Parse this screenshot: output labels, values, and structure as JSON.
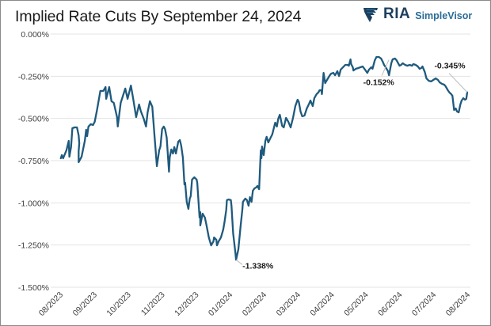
{
  "title": "Implied Rate Cuts By September 24, 2024",
  "logo": {
    "brand": "RIA",
    "product": "SimpleVisor",
    "icon": "eagle-shield-icon",
    "brand_color": "#1d3f5e",
    "product_color": "#2a6c96"
  },
  "chart_data": {
    "type": "line",
    "title": "Implied Rate Cuts By September 24, 2024",
    "xlabel": "",
    "ylabel": "",
    "ylim": [
      -1.5,
      0.0
    ],
    "yticks": [
      0.0,
      -0.25,
      -0.5,
      -0.75,
      -1.0,
      -1.25,
      -1.5
    ],
    "ytick_labels": [
      "0.000%",
      "-0.250%",
      "-0.500%",
      "-0.750%",
      "-1.000%",
      "-1.250%",
      "-1.500%"
    ],
    "xtick_labels": [
      "08/2023",
      "09/2023",
      "10/2023",
      "11/2023",
      "12/2023",
      "01/2024",
      "02/2024",
      "03/2024",
      "04/2024",
      "05/2024",
      "06/2024",
      "07/2024",
      "08/2024"
    ],
    "x_unit": "months since 08/2023",
    "xlim": [
      0,
      12
    ],
    "grid": true,
    "line_color": "#1f5a7d",
    "series": [
      {
        "name": "Implied rate cuts",
        "points": [
          [
            0.02,
            -0.736
          ],
          [
            0.05,
            -0.717
          ],
          [
            0.09,
            -0.736
          ],
          [
            0.19,
            -0.689
          ],
          [
            0.26,
            -0.633
          ],
          [
            0.28,
            -0.727
          ],
          [
            0.33,
            -0.67
          ],
          [
            0.37,
            -0.558
          ],
          [
            0.44,
            -0.553
          ],
          [
            0.51,
            -0.553
          ],
          [
            0.56,
            -0.6
          ],
          [
            0.58,
            -0.647
          ],
          [
            0.56,
            -0.694
          ],
          [
            0.56,
            -0.759
          ],
          [
            0.65,
            -0.727
          ],
          [
            0.75,
            -0.633
          ],
          [
            0.79,
            -0.567
          ],
          [
            0.82,
            -0.605
          ],
          [
            0.86,
            -0.548
          ],
          [
            0.93,
            -0.534
          ],
          [
            1.0,
            -0.539
          ],
          [
            1.05,
            -0.52
          ],
          [
            1.12,
            -0.45
          ],
          [
            1.22,
            -0.337
          ],
          [
            1.31,
            -0.337
          ],
          [
            1.38,
            -0.314
          ],
          [
            1.4,
            -0.384
          ],
          [
            1.49,
            -0.314
          ],
          [
            1.56,
            -0.398
          ],
          [
            1.63,
            -0.408
          ],
          [
            1.73,
            -0.492
          ],
          [
            1.75,
            -0.548
          ],
          [
            1.84,
            -0.408
          ],
          [
            1.98,
            -0.323
          ],
          [
            2.05,
            -0.384
          ],
          [
            2.15,
            -0.305
          ],
          [
            2.22,
            -0.384
          ],
          [
            2.31,
            -0.492
          ],
          [
            2.4,
            -0.417
          ],
          [
            2.45,
            -0.455
          ],
          [
            2.54,
            -0.502
          ],
          [
            2.61,
            -0.548
          ],
          [
            2.66,
            -0.464
          ],
          [
            2.73,
            -0.398
          ],
          [
            2.8,
            -0.431
          ],
          [
            2.87,
            -0.609
          ],
          [
            2.94,
            -0.783
          ],
          [
            3.01,
            -0.689
          ],
          [
            3.05,
            -0.666
          ],
          [
            3.1,
            -0.563
          ],
          [
            3.15,
            -0.548
          ],
          [
            3.19,
            -0.563
          ],
          [
            3.24,
            -0.614
          ],
          [
            3.31,
            -0.816
          ],
          [
            3.33,
            -0.731
          ],
          [
            3.38,
            -0.684
          ],
          [
            3.43,
            -0.708
          ],
          [
            3.47,
            -0.67
          ],
          [
            3.52,
            -0.708
          ],
          [
            3.59,
            -0.638
          ],
          [
            3.64,
            -0.628
          ],
          [
            3.68,
            -0.661
          ],
          [
            3.73,
            -0.731
          ],
          [
            3.78,
            -0.891
          ],
          [
            3.8,
            -0.881
          ],
          [
            3.85,
            -0.994
          ],
          [
            3.9,
            -1.036
          ],
          [
            3.94,
            -0.975
          ],
          [
            3.97,
            -0.961
          ],
          [
            4.01,
            -0.862
          ],
          [
            4.08,
            -0.849
          ],
          [
            4.15,
            -0.862
          ],
          [
            4.17,
            -0.882
          ],
          [
            4.24,
            -1.087
          ],
          [
            4.26,
            -1.055
          ],
          [
            4.26,
            -1.134
          ],
          [
            4.33,
            -1.064
          ],
          [
            4.4,
            -1.087
          ],
          [
            4.45,
            -1.134
          ],
          [
            4.52,
            -1.205
          ],
          [
            4.59,
            -1.252
          ],
          [
            4.66,
            -1.228
          ],
          [
            4.68,
            -1.205
          ],
          [
            4.75,
            -1.219
          ],
          [
            4.77,
            -1.252
          ],
          [
            4.82,
            -1.228
          ],
          [
            4.89,
            -1.205
          ],
          [
            4.96,
            -1.158
          ],
          [
            5.0,
            -1.111
          ],
          [
            5.05,
            -1.041
          ],
          [
            5.07,
            -0.984
          ],
          [
            5.12,
            -0.98
          ],
          [
            5.19,
            -0.984
          ],
          [
            5.21,
            -1.017
          ],
          [
            5.26,
            -1.181
          ],
          [
            5.33,
            -1.298
          ],
          [
            5.35,
            -1.338
          ],
          [
            5.42,
            -1.275
          ],
          [
            5.49,
            -1.134
          ],
          [
            5.54,
            -1.041
          ],
          [
            5.56,
            -0.994
          ],
          [
            5.63,
            -0.975
          ],
          [
            5.68,
            -0.984
          ],
          [
            5.73,
            -1.017
          ],
          [
            5.77,
            -0.966
          ],
          [
            5.82,
            -0.994
          ],
          [
            5.86,
            -0.928
          ],
          [
            5.91,
            -0.914
          ],
          [
            5.96,
            -0.909
          ],
          [
            6.0,
            -0.9
          ],
          [
            6.05,
            -0.919
          ],
          [
            6.1,
            -0.689
          ],
          [
            6.12,
            -0.736
          ],
          [
            6.14,
            -0.666
          ],
          [
            6.19,
            -0.717
          ],
          [
            6.24,
            -0.633
          ],
          [
            6.28,
            -0.609
          ],
          [
            6.33,
            -0.642
          ],
          [
            6.4,
            -0.614
          ],
          [
            6.45,
            -0.595
          ],
          [
            6.54,
            -0.525
          ],
          [
            6.59,
            -0.548
          ],
          [
            6.63,
            -0.503
          ],
          [
            6.68,
            -0.478
          ],
          [
            6.7,
            -0.497
          ],
          [
            6.75,
            -0.544
          ],
          [
            6.8,
            -0.553
          ],
          [
            6.87,
            -0.497
          ],
          [
            6.94,
            -0.52
          ],
          [
            7.01,
            -0.553
          ],
          [
            7.08,
            -0.497
          ],
          [
            7.15,
            -0.427
          ],
          [
            7.22,
            -0.389
          ],
          [
            7.26,
            -0.403
          ],
          [
            7.31,
            -0.459
          ],
          [
            7.36,
            -0.487
          ],
          [
            7.43,
            -0.483
          ],
          [
            7.5,
            -0.441
          ],
          [
            7.57,
            -0.413
          ],
          [
            7.61,
            -0.394
          ],
          [
            7.68,
            -0.427
          ],
          [
            7.73,
            -0.38
          ],
          [
            7.8,
            -0.356
          ],
          [
            7.85,
            -0.347
          ],
          [
            7.89,
            -0.333
          ],
          [
            7.94,
            -0.333
          ],
          [
            7.96,
            -0.356
          ],
          [
            8.01,
            -0.23
          ],
          [
            8.06,
            -0.291
          ],
          [
            8.13,
            -0.267
          ],
          [
            8.2,
            -0.244
          ],
          [
            8.24,
            -0.235
          ],
          [
            8.31,
            -0.23
          ],
          [
            8.36,
            -0.244
          ],
          [
            8.43,
            -0.22
          ],
          [
            8.48,
            -0.249
          ],
          [
            8.53,
            -0.211
          ],
          [
            8.6,
            -0.197
          ],
          [
            8.67,
            -0.183
          ],
          [
            8.74,
            -0.183
          ],
          [
            8.78,
            -0.188
          ],
          [
            8.83,
            -0.15
          ],
          [
            8.85,
            -0.178
          ],
          [
            8.9,
            -0.197
          ],
          [
            8.92,
            -0.216
          ],
          [
            8.99,
            -0.206
          ],
          [
            9.06,
            -0.202
          ],
          [
            9.13,
            -0.197
          ],
          [
            9.2,
            -0.192
          ],
          [
            9.27,
            -0.211
          ],
          [
            9.34,
            -0.23
          ],
          [
            9.39,
            -0.211
          ],
          [
            9.46,
            -0.197
          ],
          [
            9.5,
            -0.206
          ],
          [
            9.57,
            -0.155
          ],
          [
            9.62,
            -0.136
          ],
          [
            9.69,
            -0.136
          ],
          [
            9.76,
            -0.145
          ],
          [
            9.81,
            -0.164
          ],
          [
            9.85,
            -0.183
          ],
          [
            9.9,
            -0.197
          ],
          [
            9.97,
            -0.22
          ],
          [
            10.0,
            -0.244
          ],
          [
            10.07,
            -0.173
          ],
          [
            10.11,
            -0.15
          ],
          [
            10.18,
            -0.145
          ],
          [
            10.23,
            -0.155
          ],
          [
            10.28,
            -0.173
          ],
          [
            10.32,
            -0.188
          ],
          [
            10.37,
            -0.183
          ],
          [
            10.42,
            -0.173
          ],
          [
            10.49,
            -0.183
          ],
          [
            10.56,
            -0.188
          ],
          [
            10.63,
            -0.183
          ],
          [
            10.7,
            -0.188
          ],
          [
            10.74,
            -0.178
          ],
          [
            10.81,
            -0.183
          ],
          [
            10.88,
            -0.192
          ],
          [
            10.93,
            -0.206
          ],
          [
            10.98,
            -0.202
          ],
          [
            11.02,
            -0.192
          ],
          [
            11.09,
            -0.225
          ],
          [
            11.14,
            -0.263
          ],
          [
            11.21,
            -0.277
          ],
          [
            11.28,
            -0.281
          ],
          [
            11.35,
            -0.272
          ],
          [
            11.42,
            -0.263
          ],
          [
            11.49,
            -0.272
          ],
          [
            11.54,
            -0.286
          ],
          [
            11.61,
            -0.295
          ],
          [
            11.68,
            -0.3
          ],
          [
            11.72,
            -0.309
          ],
          [
            11.79,
            -0.333
          ],
          [
            11.84,
            -0.347
          ],
          [
            11.89,
            -0.356
          ],
          [
            11.93,
            -0.366
          ],
          [
            11.98,
            -0.45
          ],
          [
            12.03,
            -0.441
          ],
          [
            12.07,
            -0.459
          ],
          [
            12.12,
            -0.464
          ],
          [
            12.17,
            -0.417
          ],
          [
            12.21,
            -0.394
          ],
          [
            12.26,
            -0.38
          ],
          [
            12.31,
            -0.389
          ],
          [
            12.35,
            -0.384
          ],
          [
            12.38,
            -0.345
          ]
        ]
      }
    ],
    "annotations": [
      {
        "text": "-1.338%",
        "x": 5.35,
        "y": -1.338,
        "placement": "below-right"
      },
      {
        "text": "-0.152%",
        "x": 10.0,
        "y": -0.152,
        "placement": "below-left"
      },
      {
        "text": "-0.345%",
        "x": 12.38,
        "y": -0.345,
        "placement": "above-left"
      }
    ]
  }
}
